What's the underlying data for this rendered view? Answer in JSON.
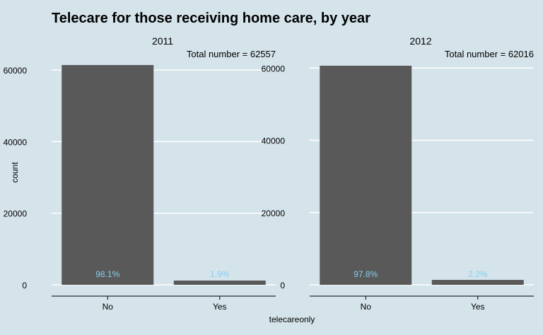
{
  "chart_data": {
    "type": "bar",
    "title": "Telecare for those receiving home care, by year",
    "xlabel": "telecareonly",
    "ylabel": "count",
    "categories": [
      "No",
      "Yes"
    ],
    "y_ticks": [
      0,
      20000,
      40000,
      60000
    ],
    "grid": "horizontal",
    "colors": {
      "background": "#d5e4eb",
      "bar": "#595959",
      "grid": "#ffffff",
      "label": "#87ceeb",
      "axis": "#000000"
    },
    "panels": [
      {
        "strip": "2011",
        "total_label": "Total number = 62557",
        "values": [
          61368,
          1189
        ],
        "labels": [
          "98.1%",
          "1.9%"
        ],
        "ylim": [
          0,
          62557
        ]
      },
      {
        "strip": "2012",
        "total_label": "Total number = 62016",
        "values": [
          60652,
          1364
        ],
        "labels": [
          "97.8%",
          "2.2%"
        ],
        "ylim": [
          0,
          62016
        ]
      }
    ]
  }
}
